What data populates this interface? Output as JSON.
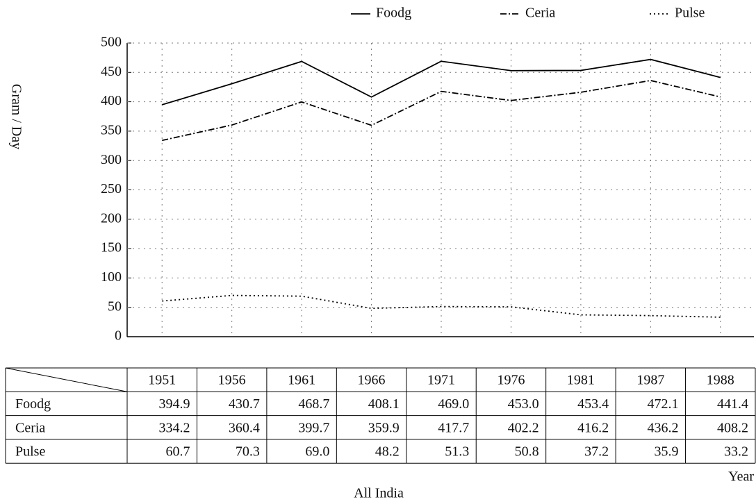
{
  "chart_data": {
    "type": "line",
    "y_label": "Gram / Day",
    "x_label": "Year",
    "caption": "All India",
    "categories": [
      "1951",
      "1956",
      "1961",
      "1966",
      "1971",
      "1976",
      "1981",
      "1987",
      "1988"
    ],
    "ylim": [
      0,
      500
    ],
    "yticks": [
      0,
      50,
      100,
      150,
      200,
      250,
      300,
      350,
      400,
      450,
      500
    ],
    "grid": true,
    "series": [
      {
        "name": "Foodg",
        "color": "#000000",
        "style": "solid",
        "values": [
          394.9,
          430.7,
          468.7,
          408.1,
          469,
          453,
          453.4,
          472.1,
          441.4
        ],
        "value_labels": [
          "394.9",
          "430.7",
          "468.7",
          "408.1",
          "469.0",
          "453.0",
          "453.4",
          "472.1",
          "441.4"
        ]
      },
      {
        "name": "Ceria",
        "color": "#000000",
        "style": "dashdot",
        "values": [
          334.2,
          360.4,
          399.7,
          359.9,
          417.7,
          402.2,
          416.2,
          436.2,
          408.2
        ],
        "value_labels": [
          "334.2",
          "360.4",
          "399.7",
          "359.9",
          "417.7",
          "402.2",
          "416.2",
          "436.2",
          "408.2"
        ]
      },
      {
        "name": "Pulse",
        "color": "#000000",
        "style": "dotted",
        "values": [
          60.7,
          70.3,
          69,
          48.2,
          51.3,
          50.8,
          37.2,
          35.9,
          33.2
        ],
        "value_labels": [
          "60.7",
          "70.3",
          "69.0",
          "48.2",
          "51.3",
          "50.8",
          "37.2",
          "35.9",
          "33.2"
        ]
      }
    ]
  }
}
